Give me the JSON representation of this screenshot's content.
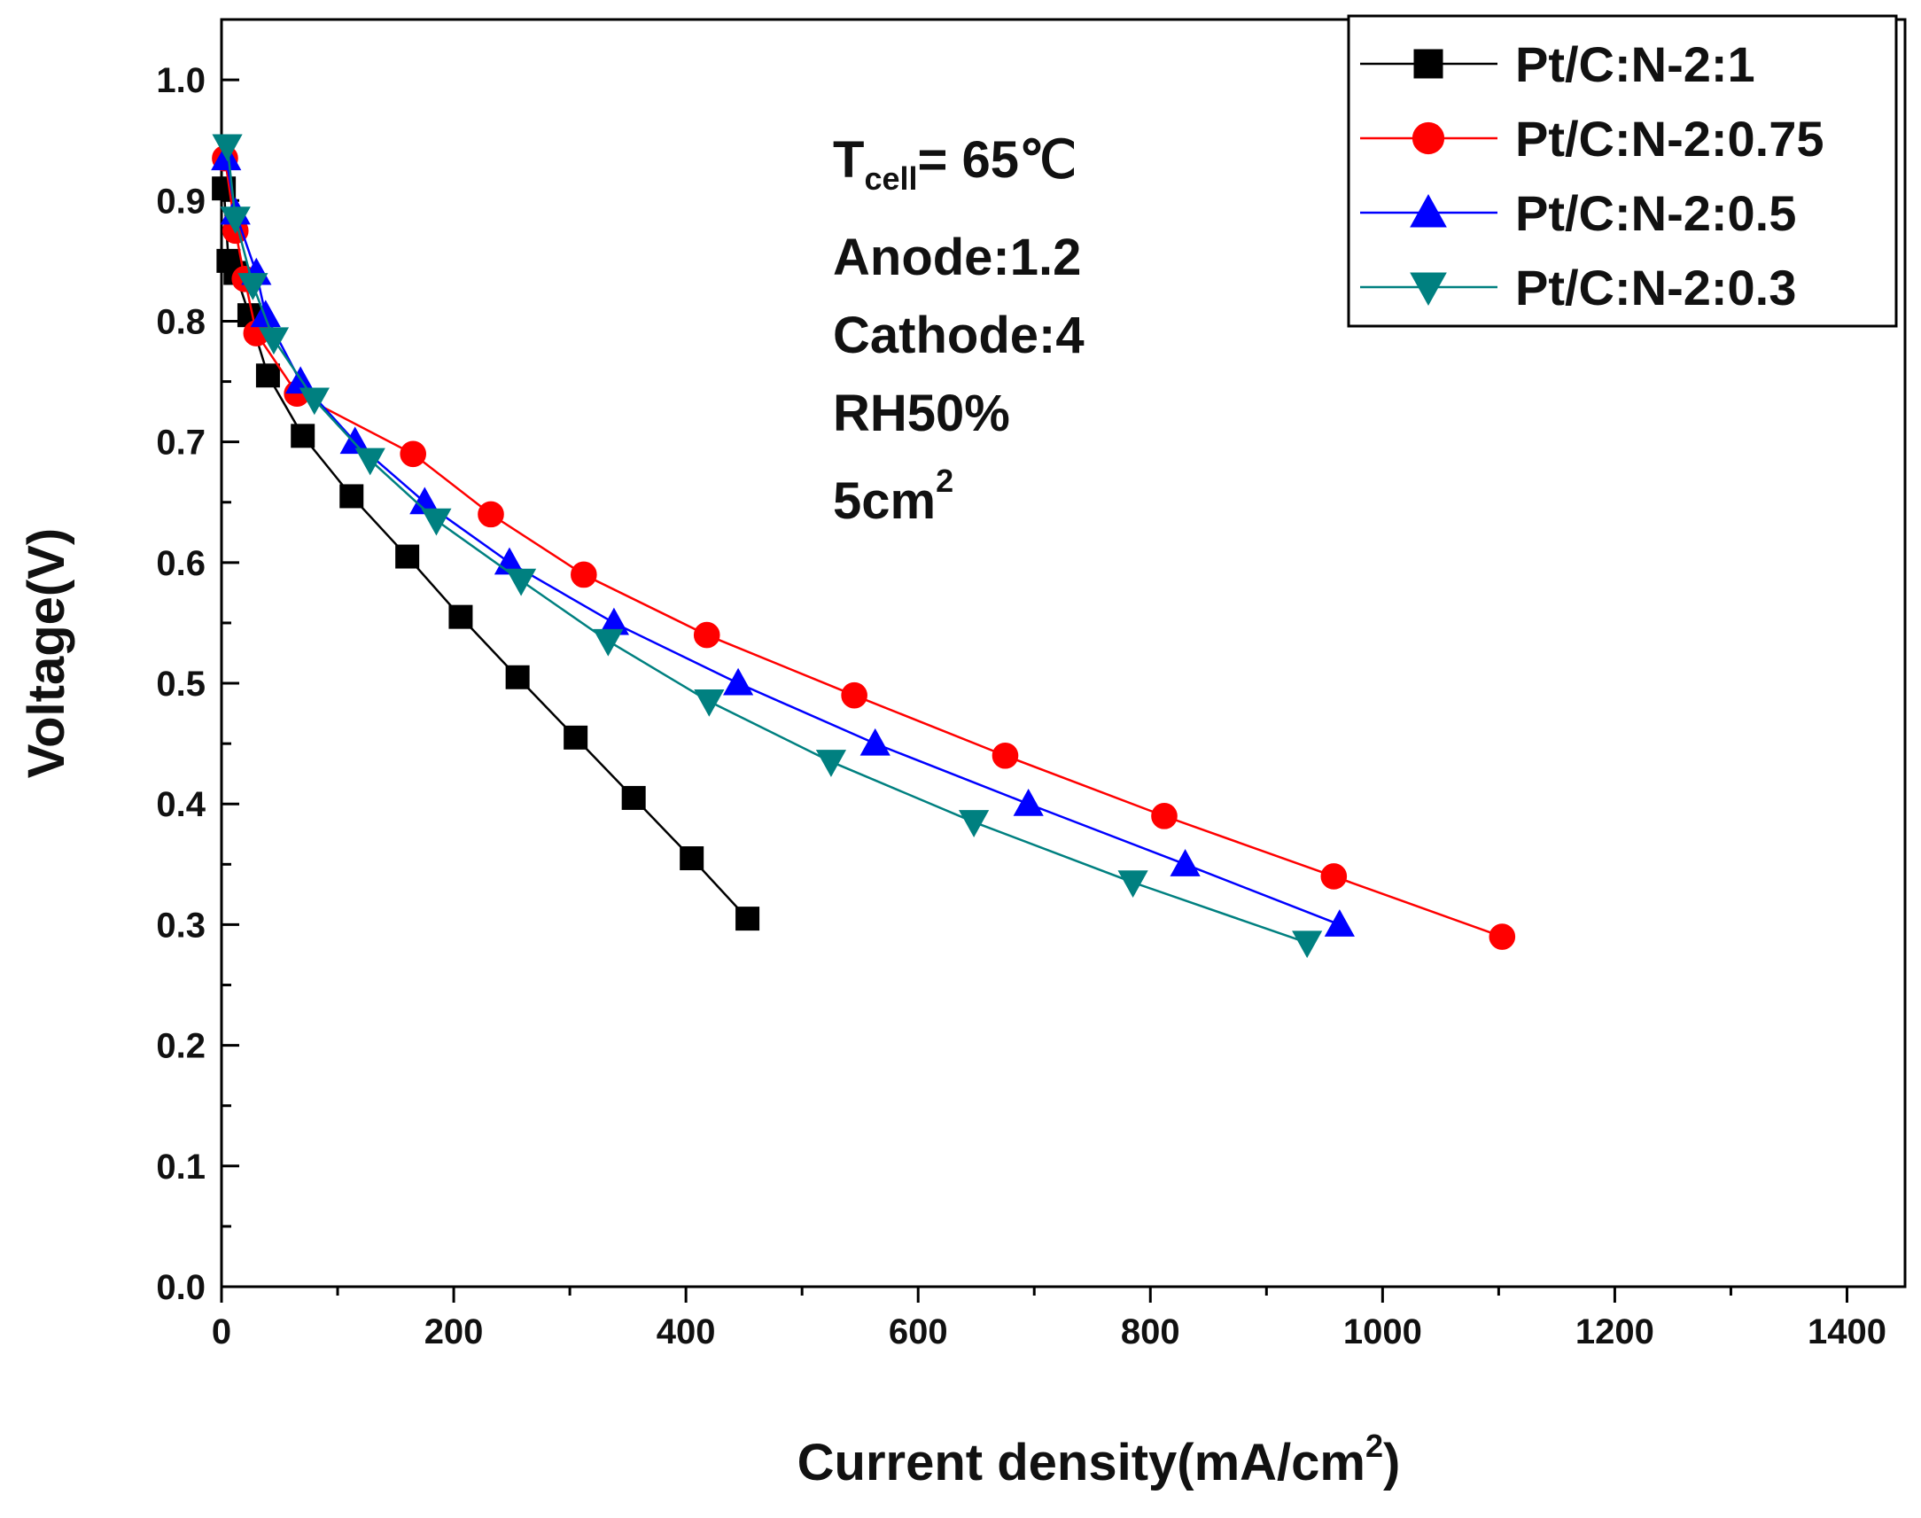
{
  "chart_data": {
    "type": "line",
    "xlabel": "Current density(mA/cm",
    "xlabel_sup": "2",
    "xlabel_close": ")",
    "ylabel": "Voltage(V)",
    "xlim": [
      0,
      1450
    ],
    "ylim": [
      0,
      1.05
    ],
    "xticks": [
      0,
      200,
      400,
      600,
      800,
      1000,
      1200,
      1400
    ],
    "xtick_labels": [
      "0",
      "200",
      "400",
      "600",
      "800",
      "1000",
      "1200",
      "1400"
    ],
    "yticks": [
      0.0,
      0.1,
      0.2,
      0.3,
      0.4,
      0.5,
      0.6,
      0.7,
      0.8,
      0.9,
      1.0
    ],
    "ytick_labels": [
      "0.0",
      "0.1",
      "0.2",
      "0.3",
      "0.4",
      "0.5",
      "0.6",
      "0.7",
      "0.8",
      "0.9",
      "1.0"
    ],
    "grid": false,
    "legend_position": "top-right",
    "annotations": {
      "tcell_main": "T",
      "tcell_sub": "cell",
      "tcell_value": "= 65℃",
      "anode": "Anode:1.2",
      "cathode": "Cathode:4",
      "rh": "RH50%",
      "area": "5cm",
      "area_sup": "2"
    },
    "series": [
      {
        "name": "Pt/C:N-2:1",
        "color": "#000000",
        "marker": "square",
        "x": [
          2,
          6,
          12,
          24,
          40,
          70,
          112,
          160,
          206,
          255,
          305,
          355,
          405,
          453
        ],
        "y": [
          0.91,
          0.85,
          0.84,
          0.805,
          0.755,
          0.705,
          0.655,
          0.605,
          0.555,
          0.505,
          0.455,
          0.405,
          0.355,
          0.305
        ]
      },
      {
        "name": "Pt/C:N-2:0.75",
        "color": "#ff0000",
        "marker": "circle",
        "x": [
          3,
          12,
          20,
          30,
          65,
          165,
          232,
          312,
          418,
          545,
          675,
          812,
          958,
          1103
        ],
        "y": [
          0.935,
          0.875,
          0.835,
          0.79,
          0.74,
          0.69,
          0.64,
          0.59,
          0.54,
          0.49,
          0.44,
          0.39,
          0.34,
          0.29
        ]
      },
      {
        "name": "Pt/C:N-2:0.5",
        "color": "#0000ff",
        "marker": "triangle-up",
        "x": [
          4,
          12,
          30,
          38,
          68,
          115,
          175,
          248,
          338,
          445,
          563,
          695,
          830,
          963
        ],
        "y": [
          0.935,
          0.89,
          0.84,
          0.805,
          0.75,
          0.7,
          0.65,
          0.6,
          0.55,
          0.5,
          0.45,
          0.4,
          0.35,
          0.3
        ]
      },
      {
        "name": "Pt/C:N-2:0.3",
        "color": "#008080",
        "marker": "triangle-down",
        "x": [
          5,
          12,
          27,
          45,
          80,
          128,
          185,
          258,
          333,
          420,
          525,
          648,
          785,
          935
        ],
        "y": [
          0.945,
          0.885,
          0.83,
          0.785,
          0.735,
          0.685,
          0.635,
          0.585,
          0.535,
          0.485,
          0.435,
          0.385,
          0.335,
          0.285
        ]
      }
    ]
  }
}
